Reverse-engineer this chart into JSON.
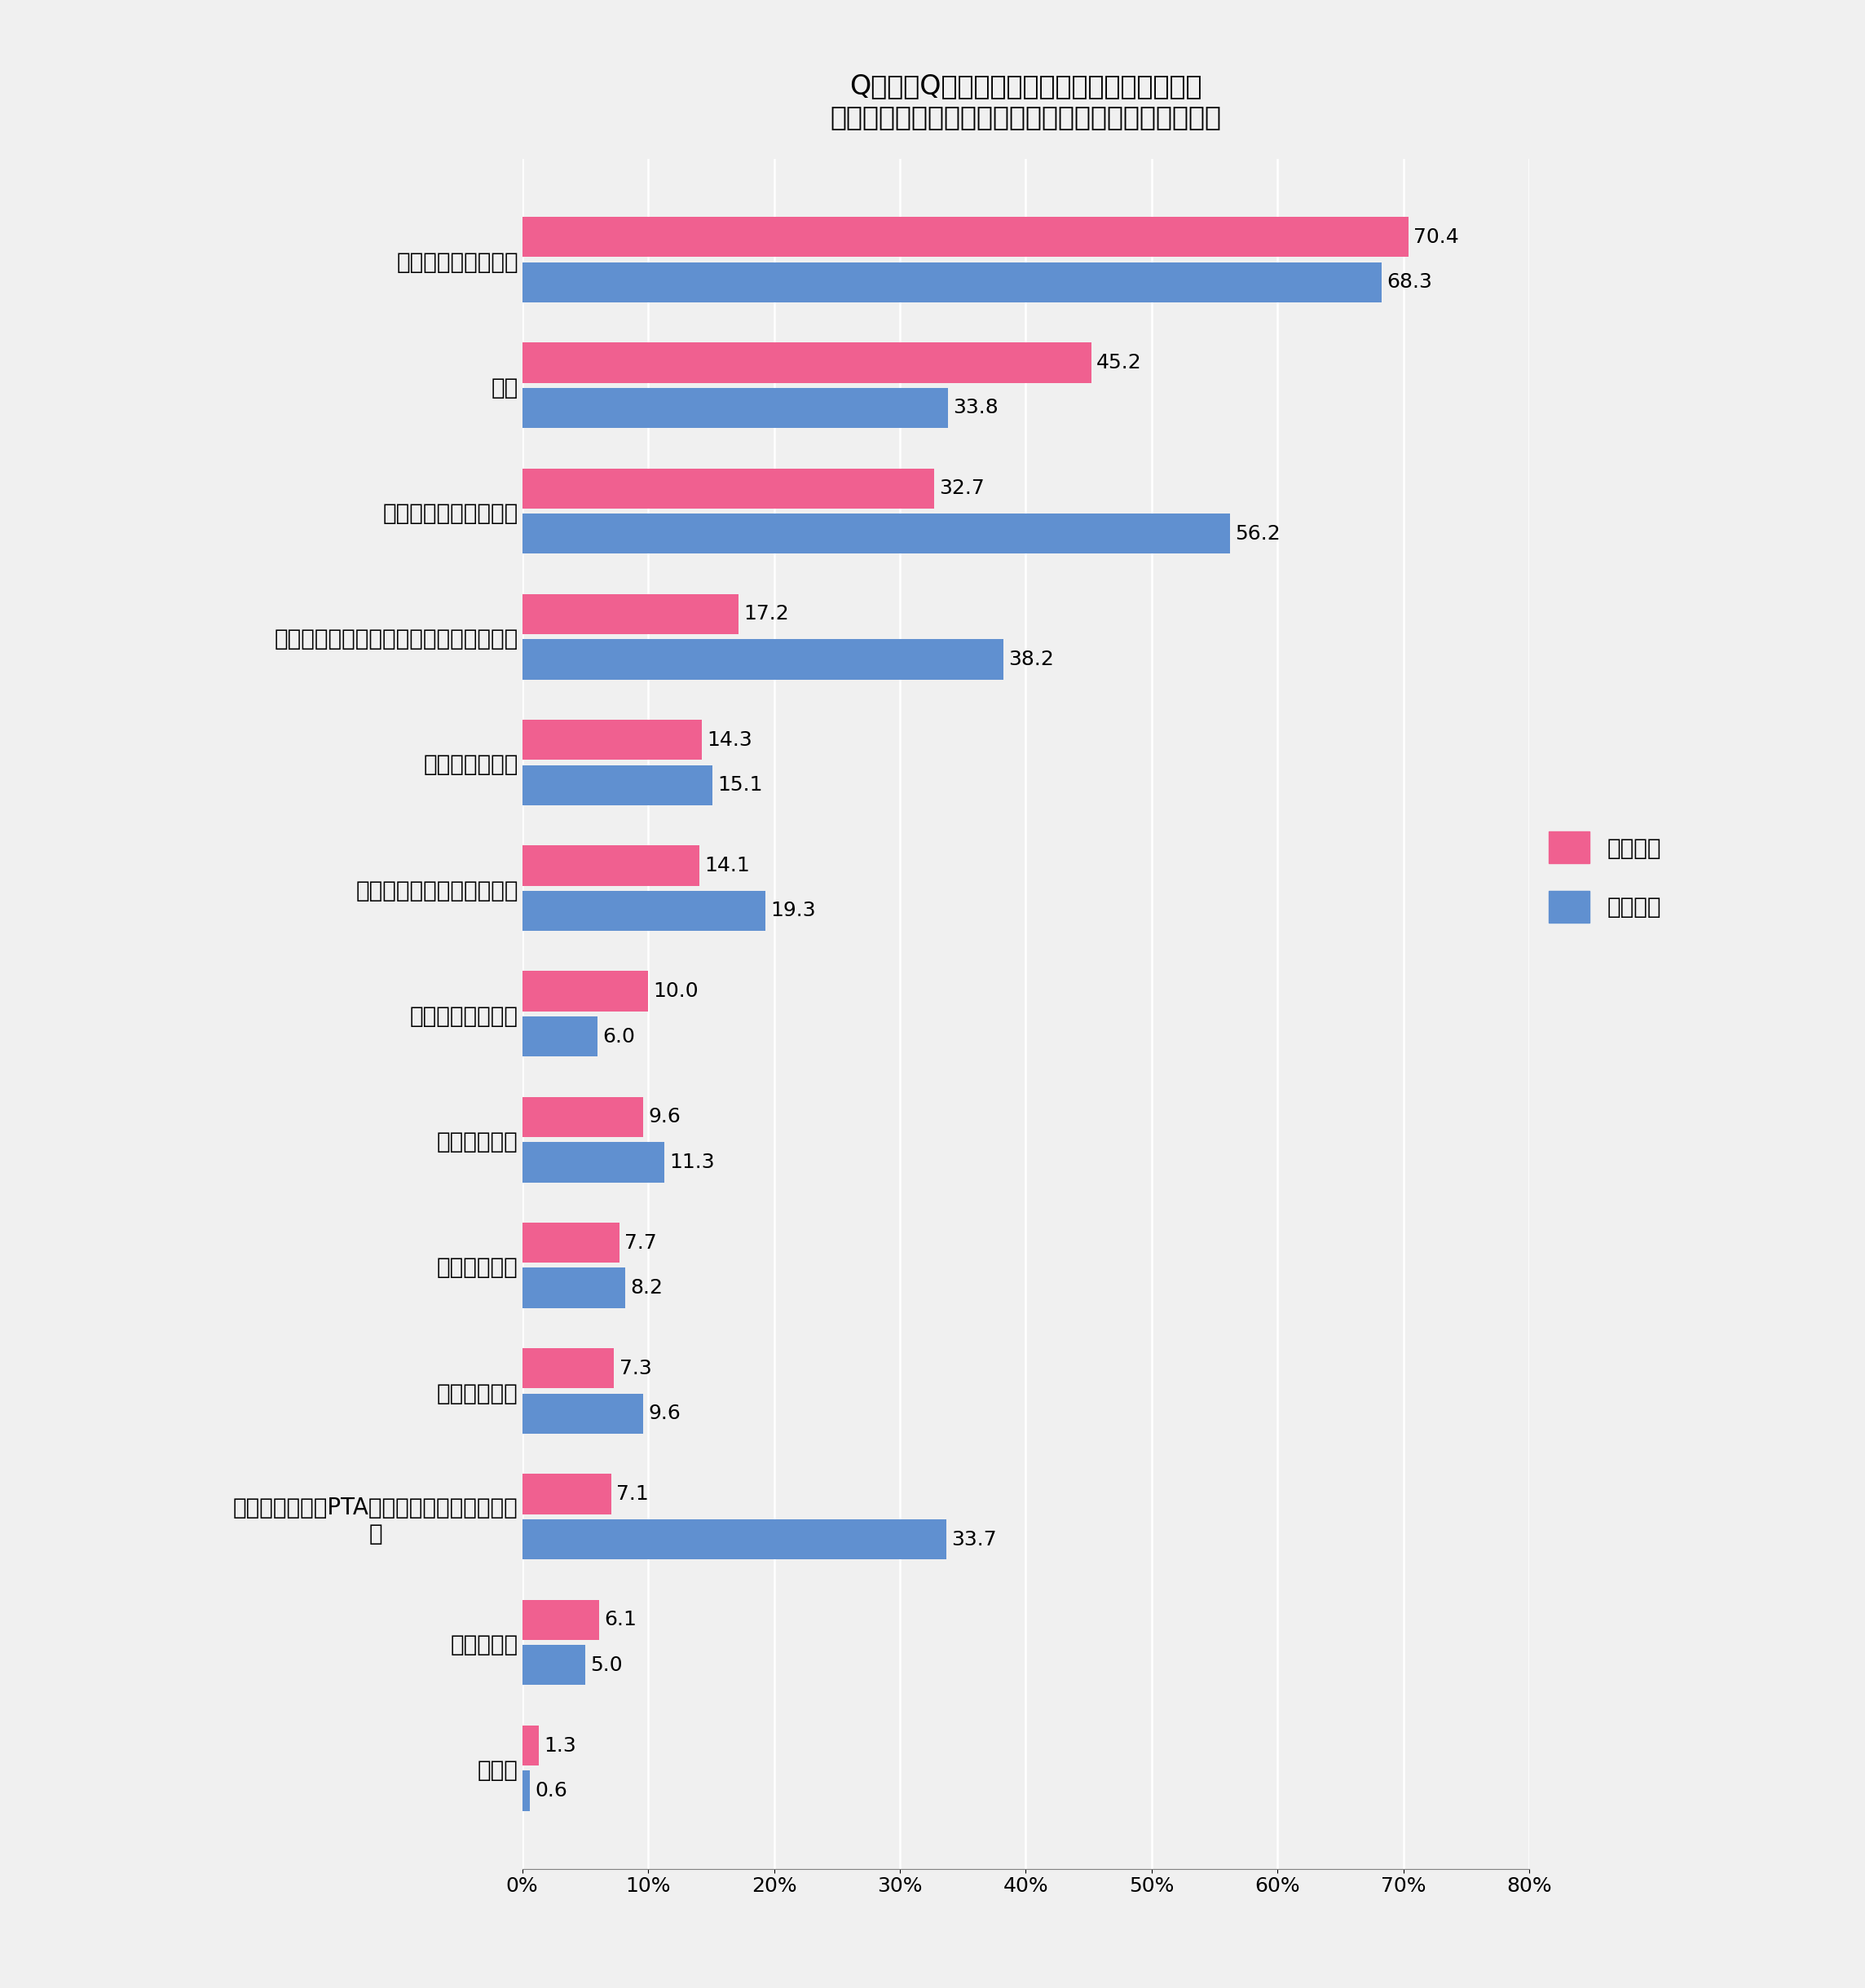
{
  "title_line1": "Q５．［Q４．で「ある」を選択した方対象］",
  "title_line2": "それはどのような「関わり」ですか。（いくつでも）",
  "categories": [
    "ご近所（挨拶程度）",
    "友人",
    "ご近所（立ち話程度）",
    "自治会／管理組合／町内会での活動関連",
    "行きつけのお店",
    "ご近所（家を行き来する）",
    "ボランティア活動",
    "スポーツ関連",
    "地域防災活動",
    "趣味サークル",
    "ママ・パパ友／PTA／保護者会など子ども関連",
    "ペット関連",
    "その他"
  ],
  "categories_wrapped": [
    "ご近所（挨拶程度）",
    "友人",
    "ご近所（立ち話程度）",
    "自治会／管理組合／町内会での活動関連",
    "行きつけのお店",
    "ご近所（家を行き来する）",
    "ボランティア活動",
    "スポーツ関連",
    "地域防災活動",
    "趣味サークル",
    "ママ・パパ友／PTA／保護者会など子ども関\n連",
    "ペット関連",
    "その他"
  ],
  "heisei": [
    70.4,
    45.2,
    32.7,
    17.2,
    14.3,
    14.1,
    10.0,
    9.6,
    7.7,
    7.3,
    7.1,
    6.1,
    1.3
  ],
  "showa": [
    68.3,
    33.8,
    56.2,
    38.2,
    15.1,
    19.3,
    6.0,
    11.3,
    8.2,
    9.6,
    33.7,
    5.0,
    0.6
  ],
  "heisei_color": "#F06090",
  "showa_color": "#6090D0",
  "background_color": "#F0F0F0",
  "legend_heisei": "平成世代",
  "legend_showa": "昭和世代",
  "xlim": [
    0,
    80
  ],
  "xtick_labels": [
    "0%",
    "10%",
    "20%",
    "30%",
    "40%",
    "50%",
    "60%",
    "70%",
    "80%"
  ],
  "xtick_values": [
    0,
    10,
    20,
    30,
    40,
    50,
    60,
    70,
    80
  ],
  "bar_height": 0.32,
  "bar_gap": 0.04,
  "title_fontsize": 24,
  "label_fontsize": 20,
  "tick_fontsize": 18,
  "value_fontsize": 18,
  "legend_fontsize": 20
}
